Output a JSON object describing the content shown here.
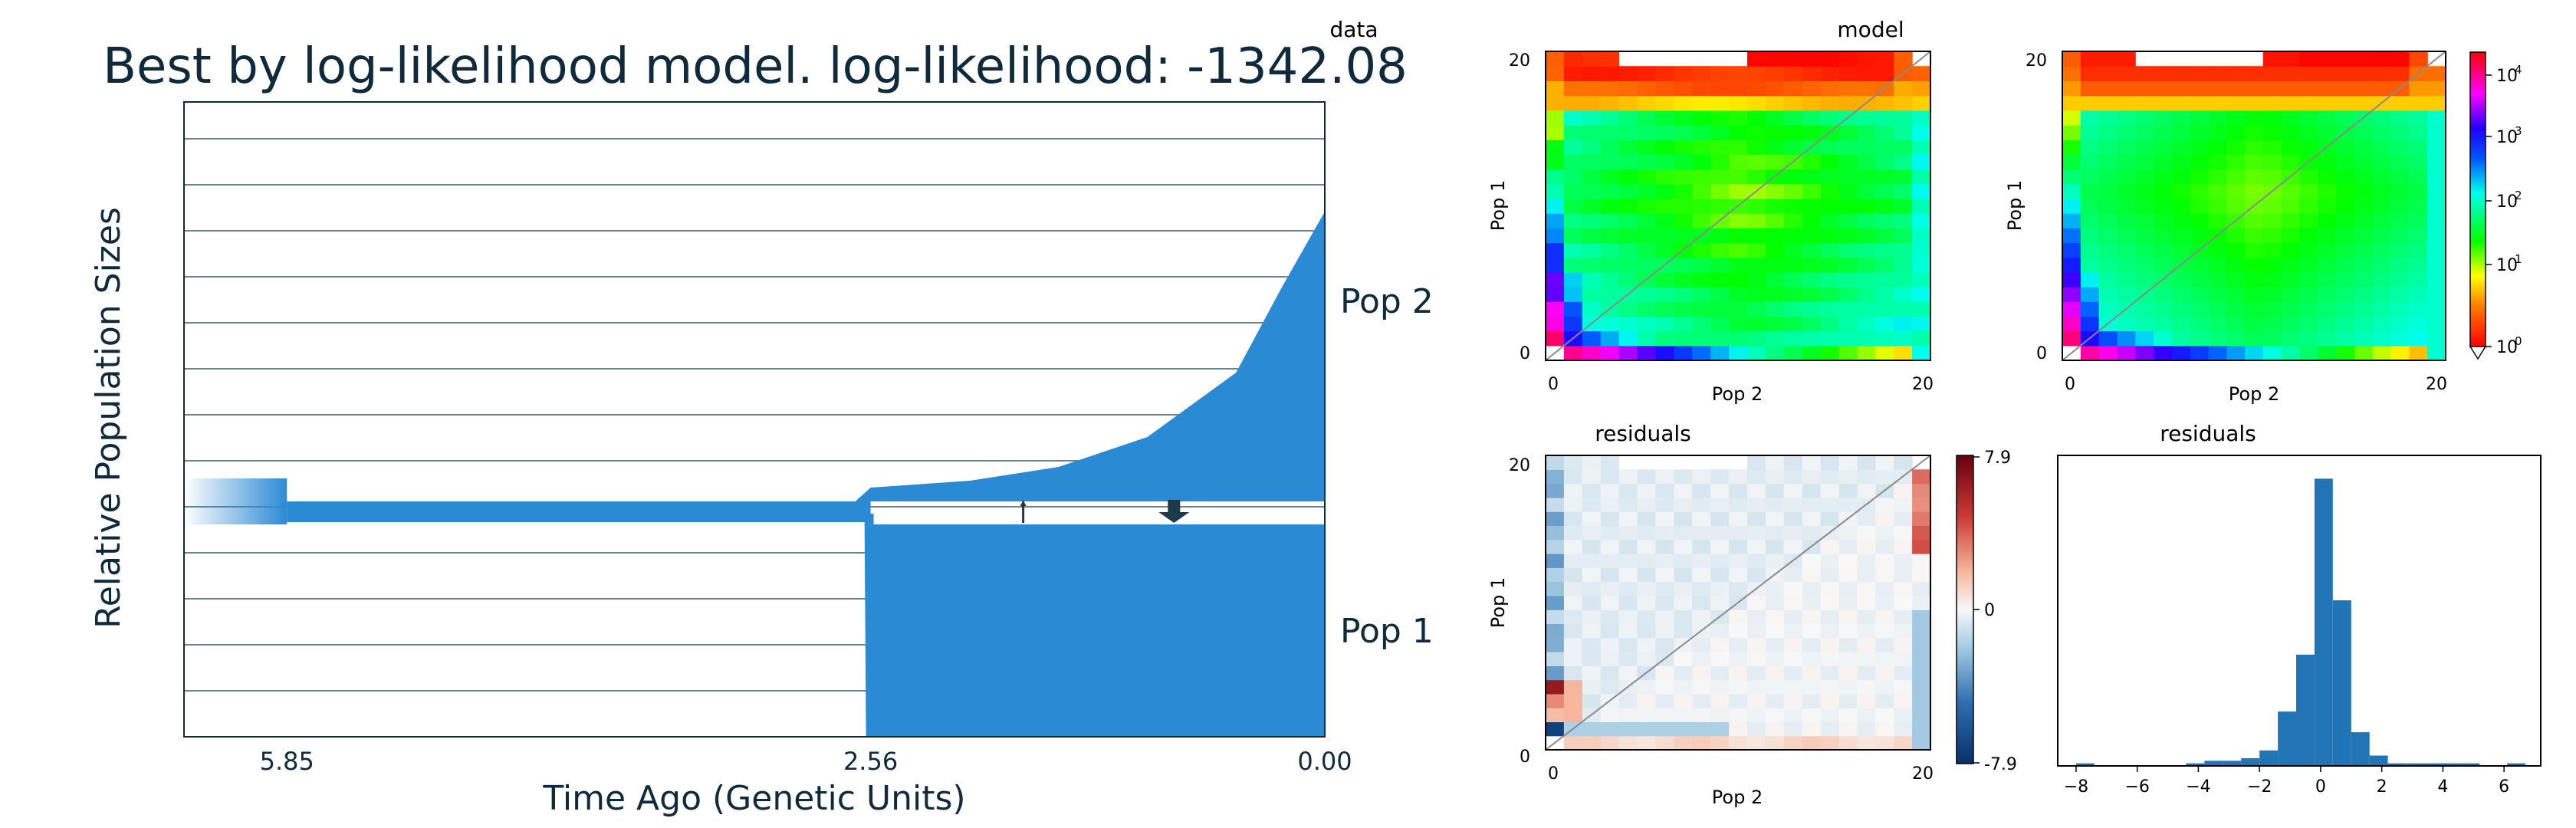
{
  "colors": {
    "pop_fill": "#2b8ad4",
    "frame": "#0e2a3c",
    "title_text": "#0e2a3c",
    "arrow": "#1d3a4a",
    "residual_bar": "#2174b5"
  },
  "chart_data": [
    {
      "type": "area",
      "title": "Best by log-likelihood model. log-likelihood: -1342.08",
      "xlabel": "Time Ago (Genetic Units)",
      "ylabel": "Relative Population Sizes",
      "x_tick_labels": [
        "5.85",
        "2.56",
        "0.00"
      ],
      "x_ticks": [
        5.85,
        2.56,
        0.0
      ],
      "xlim": [
        6.43,
        0.0
      ],
      "series": [
        {
          "name": "Pop 2",
          "x": [
            2.56,
            2.0,
            1.5,
            1.0,
            0.5,
            0.25,
            0.0
          ],
          "values": [
            0.3,
            0.45,
            0.75,
            1.4,
            2.8,
            4.6,
            6.3
          ]
        },
        {
          "name": "Pop 1",
          "x": [
            2.56,
            0.0
          ],
          "values": [
            3.4,
            3.4
          ]
        }
      ],
      "ancestral": {
        "x": [
          5.85,
          2.56
        ],
        "values": [
          0.45,
          0.45
        ],
        "older_value": 1.0
      },
      "migration_arrows": [
        {
          "x": 1.7,
          "direction": "up",
          "strength": "weak"
        },
        {
          "x": 0.85,
          "direction": "down",
          "strength": "strong"
        }
      ]
    },
    {
      "type": "heatmap",
      "title": "data",
      "xlabel": "Pop 2",
      "ylabel": "Pop 1",
      "x_tick_labels": [
        "0",
        "20"
      ],
      "y_tick_labels": [
        "0",
        "20"
      ],
      "scale": "log",
      "range": [
        1,
        40000
      ]
    },
    {
      "type": "heatmap",
      "title": "model",
      "xlabel": "Pop 2",
      "ylabel": "Pop 1",
      "x_tick_labels": [
        "0",
        "20"
      ],
      "y_tick_labels": [
        "0",
        "20"
      ],
      "scale": "log",
      "range": [
        1,
        40000
      ],
      "colorbar_tick_labels": [
        "10",
        "10",
        "10",
        "10",
        "10"
      ],
      "colorbar_tick_exponents": [
        "4",
        "3",
        "2",
        "1",
        "0"
      ]
    },
    {
      "type": "heatmap",
      "title": "residuals",
      "xlabel": "Pop 2",
      "ylabel": "Pop 1",
      "x_tick_labels": [
        "0",
        "20"
      ],
      "y_tick_labels": [
        "0",
        "20"
      ],
      "range": [
        -7.9,
        7.9
      ],
      "colorbar_tick_labels": [
        "7.9",
        "0",
        "-7.9"
      ]
    },
    {
      "type": "bar",
      "title": "residuals",
      "x_tick_labels": [
        "−8",
        "−6",
        "−4",
        "−2",
        "0",
        "2",
        "4",
        "6"
      ],
      "x_ticks": [
        -8,
        -6,
        -4,
        -2,
        0,
        2,
        4,
        6
      ],
      "xlim": [
        -8.6,
        7.2
      ],
      "bin_width": 0.6,
      "bins": [
        -8,
        -4.4,
        -3.8,
        -3.2,
        -2.6,
        -2.0,
        -1.4,
        -0.8,
        -0.2,
        0.4,
        1.0,
        1.6,
        2.2,
        2.8,
        3.4,
        4.0,
        4.6,
        6.1
      ],
      "values": [
        1,
        1,
        2,
        2,
        3,
        6,
        21,
        43,
        111,
        64,
        13,
        4,
        1,
        1,
        1,
        1,
        1,
        1
      ],
      "ylim": [
        0,
        120
      ]
    }
  ]
}
